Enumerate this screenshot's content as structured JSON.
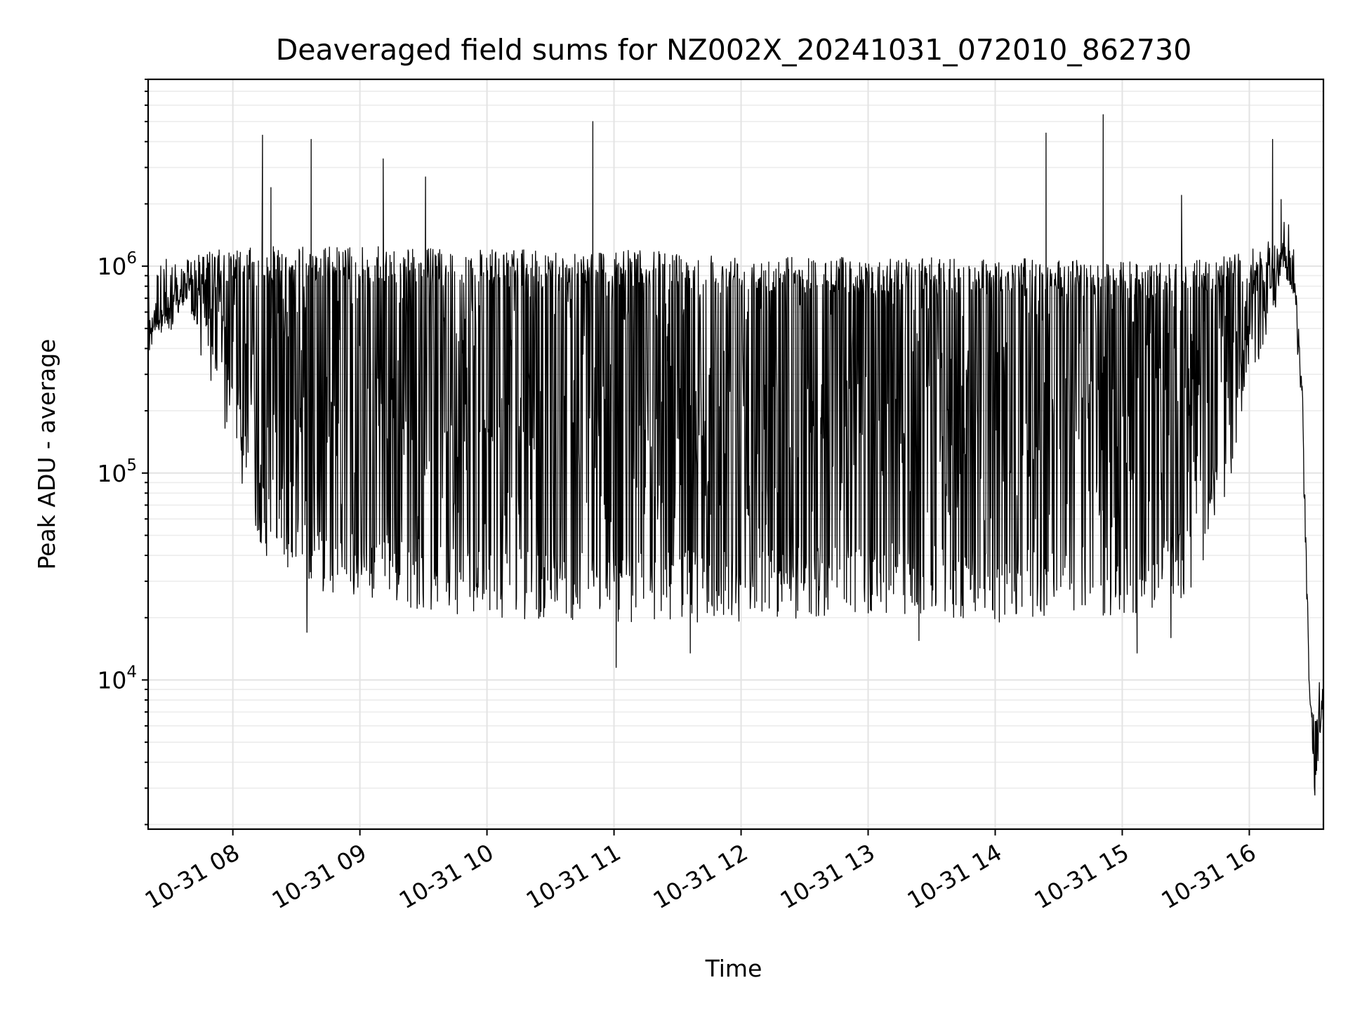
{
  "chart_data": {
    "type": "line",
    "title": "Deaveraged field sums for NZ002X_20241031_072010_862730",
    "xlabel": "Time",
    "ylabel": "Peak ADU - average",
    "yscale": "log",
    "ylim": [
      1900,
      8000000
    ],
    "xlim": [
      "2024-10-31T07:20",
      "2024-10-31T16:35"
    ],
    "grid": true,
    "x_ticks": [
      {
        "value": "2024-10-31T08:00",
        "label": "10-31 08"
      },
      {
        "value": "2024-10-31T09:00",
        "label": "10-31 09"
      },
      {
        "value": "2024-10-31T10:00",
        "label": "10-31 10"
      },
      {
        "value": "2024-10-31T11:00",
        "label": "10-31 11"
      },
      {
        "value": "2024-10-31T12:00",
        "label": "10-31 12"
      },
      {
        "value": "2024-10-31T13:00",
        "label": "10-31 13"
      },
      {
        "value": "2024-10-31T14:00",
        "label": "10-31 14"
      },
      {
        "value": "2024-10-31T15:00",
        "label": "10-31 15"
      },
      {
        "value": "2024-10-31T16:00",
        "label": "10-31 16"
      }
    ],
    "y_ticks": [
      {
        "value": 10000,
        "label_base": "10",
        "label_exp": "4"
      },
      {
        "value": 100000,
        "label_base": "10",
        "label_exp": "5"
      },
      {
        "value": 1000000,
        "label_base": "10",
        "label_exp": "6"
      }
    ],
    "series": [
      {
        "color": "#000000",
        "envelope": [
          {
            "x": "2024-10-31T07:20",
            "upper": 560000,
            "lower": 400000
          },
          {
            "x": "2024-10-31T07:30",
            "upper": 700000,
            "lower": 520000
          },
          {
            "x": "2024-10-31T07:40",
            "upper": 1100000,
            "lower": 480000
          },
          {
            "x": "2024-10-31T07:50",
            "upper": 1200000,
            "lower": 250000
          },
          {
            "x": "2024-10-31T08:00",
            "upper": 1200000,
            "lower": 120000
          },
          {
            "x": "2024-10-31T08:15",
            "upper": 1250000,
            "lower": 40000
          },
          {
            "x": "2024-10-31T08:30",
            "upper": 1250000,
            "lower": 28000
          },
          {
            "x": "2024-10-31T09:00",
            "upper": 1250000,
            "lower": 24000
          },
          {
            "x": "2024-10-31T10:00",
            "upper": 1200000,
            "lower": 20000
          },
          {
            "x": "2024-10-31T11:00",
            "upper": 1200000,
            "lower": 19000
          },
          {
            "x": "2024-10-31T12:00",
            "upper": 1150000,
            "lower": 19000
          },
          {
            "x": "2024-10-31T13:00",
            "upper": 1100000,
            "lower": 21000
          },
          {
            "x": "2024-10-31T14:00",
            "upper": 1100000,
            "lower": 19000
          },
          {
            "x": "2024-10-31T15:00",
            "upper": 1050000,
            "lower": 20000
          },
          {
            "x": "2024-10-31T15:30",
            "upper": 1050000,
            "lower": 24000
          },
          {
            "x": "2024-10-31T15:45",
            "upper": 1100000,
            "lower": 50000
          },
          {
            "x": "2024-10-31T16:00",
            "upper": 1200000,
            "lower": 250000
          },
          {
            "x": "2024-10-31T16:10",
            "upper": 1350000,
            "lower": 500000
          },
          {
            "x": "2024-10-31T16:18",
            "upper": 1300000,
            "lower": 800000
          },
          {
            "x": "2024-10-31T16:22",
            "upper": 900000,
            "lower": 500000
          },
          {
            "x": "2024-10-31T16:25",
            "upper": 280000,
            "lower": 150000
          },
          {
            "x": "2024-10-31T16:27",
            "upper": 40000,
            "lower": 15000
          },
          {
            "x": "2024-10-31T16:29",
            "upper": 8000,
            "lower": 3500
          },
          {
            "x": "2024-10-31T16:31",
            "upper": 6500,
            "lower": 1950
          },
          {
            "x": "2024-10-31T16:33",
            "upper": 8500,
            "lower": 5000
          },
          {
            "x": "2024-10-31T16:35",
            "upper": 7000,
            "lower": 4200
          }
        ],
        "spikes": [
          {
            "x": "2024-10-31T08:14",
            "y": 4300000
          },
          {
            "x": "2024-10-31T08:18",
            "y": 2400000
          },
          {
            "x": "2024-10-31T08:37",
            "y": 4100000
          },
          {
            "x": "2024-10-31T09:11",
            "y": 3300000
          },
          {
            "x": "2024-10-31T09:31",
            "y": 2700000
          },
          {
            "x": "2024-10-31T10:50",
            "y": 5000000
          },
          {
            "x": "2024-10-31T14:24",
            "y": 4400000
          },
          {
            "x": "2024-10-31T14:51",
            "y": 5400000
          },
          {
            "x": "2024-10-31T15:28",
            "y": 2200000
          },
          {
            "x": "2024-10-31T16:11",
            "y": 4100000
          },
          {
            "x": "2024-10-31T16:15",
            "y": 2100000
          }
        ],
        "dips": [
          {
            "x": "2024-10-31T08:35",
            "y": 17000
          },
          {
            "x": "2024-10-31T11:01",
            "y": 11500
          },
          {
            "x": "2024-10-31T11:36",
            "y": 13500
          },
          {
            "x": "2024-10-31T13:24",
            "y": 15500
          },
          {
            "x": "2024-10-31T15:07",
            "y": 13500
          },
          {
            "x": "2024-10-31T15:23",
            "y": 16000
          }
        ]
      }
    ]
  }
}
